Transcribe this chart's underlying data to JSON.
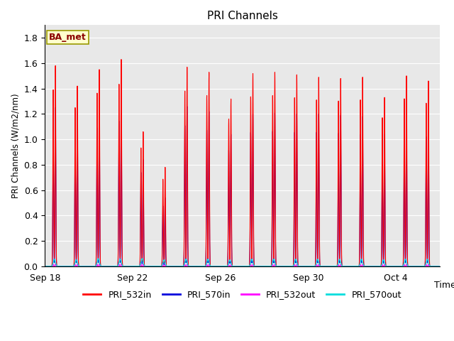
{
  "title": "PRI Channels",
  "ylabel": "PRI Channels (W/m2/nm)",
  "xlabel": "Time",
  "ylim": [
    0.0,
    1.9
  ],
  "yticks": [
    0.0,
    0.2,
    0.4,
    0.6,
    0.8,
    1.0,
    1.2,
    1.4,
    1.6,
    1.8
  ],
  "xtick_labels": [
    "Sep 18",
    "Sep 22",
    "Sep 26",
    "Sep 30",
    "Oct 4"
  ],
  "xtick_positions": [
    0,
    4,
    8,
    12,
    16
  ],
  "plot_bg_color": "#e8e8e8",
  "annotation_text": "BA_met",
  "annotation_bg": "#ffffcc",
  "annotation_border": "#999900",
  "series": {
    "PRI_532in": {
      "color": "#ff0000",
      "label": "PRI_532in"
    },
    "PRI_570in": {
      "color": "#0000dd",
      "label": "PRI_570in"
    },
    "PRI_532out": {
      "color": "#ff00ff",
      "label": "PRI_532out"
    },
    "PRI_570out": {
      "color": "#00dddd",
      "label": "PRI_570out"
    }
  },
  "num_days": 18,
  "day_peaks_532in": [
    1.58,
    1.42,
    1.55,
    1.63,
    1.06,
    0.78,
    1.57,
    1.53,
    1.32,
    1.52,
    1.53,
    1.51,
    1.49,
    1.48,
    1.49,
    1.33,
    1.5,
    1.46
  ],
  "day_peaks_570in": [
    1.25,
    1.22,
    1.24,
    1.3,
    0.84,
    0.54,
    1.26,
    1.22,
    1.04,
    1.2,
    1.21,
    1.2,
    1.2,
    1.19,
    1.18,
    1.04,
    1.19,
    1.16
  ],
  "day_peaks_532out": [
    0.018,
    0.015,
    0.018,
    0.02,
    0.016,
    0.012,
    0.016,
    0.016,
    0.014,
    0.016,
    0.016,
    0.015,
    0.015,
    0.015,
    0.015,
    0.014,
    0.015,
    0.015
  ],
  "day_peaks_570out": [
    0.055,
    0.05,
    0.06,
    0.055,
    0.06,
    0.05,
    0.055,
    0.055,
    0.05,
    0.055,
    0.055,
    0.055,
    0.055,
    0.055,
    0.055,
    0.05,
    0.055,
    0.055
  ],
  "sub_peaks_per_day": [
    2,
    2,
    2,
    2,
    2,
    2,
    2,
    2,
    2,
    2,
    2,
    2,
    2,
    2,
    2,
    2,
    2,
    2
  ]
}
